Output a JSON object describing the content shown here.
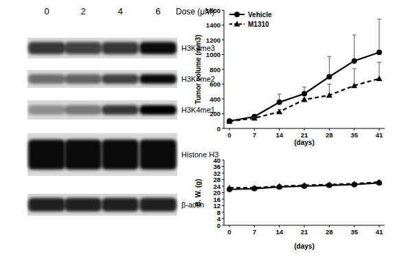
{
  "western_blot": {
    "dose_label": "Dose (μM)",
    "doses": [
      "0",
      "2",
      "4",
      "6"
    ],
    "rows": [
      {
        "label": "H3K4me3",
        "intensity": [
          0.75,
          0.7,
          0.75,
          0.95
        ]
      },
      {
        "label": "H3K4me2",
        "intensity": [
          0.5,
          0.55,
          0.7,
          0.95
        ]
      },
      {
        "label": "H3K4me1",
        "intensity": [
          0.35,
          0.45,
          0.75,
          1
        ]
      },
      {
        "label": "Histone H3",
        "intensity": [
          0.95,
          0.95,
          0.95,
          0.95
        ]
      },
      {
        "label": "β-actin",
        "intensity": [
          0.85,
          0.85,
          0.85,
          0.85
        ]
      }
    ]
  },
  "chart_data": [
    {
      "type": "line",
      "x_label": "(days)",
      "y_label": "Tumor volume (mm3)",
      "categories": [
        "0",
        "7",
        "14",
        "21",
        "28",
        "35",
        "41"
      ],
      "ylim": [
        0,
        1600
      ],
      "yticks": [
        0,
        200,
        400,
        600,
        800,
        1000,
        1200,
        1400,
        1600
      ],
      "legend": "top-left",
      "series": [
        {
          "name": "Vehicle",
          "color": "#000000",
          "marker": "circle",
          "line_style": "solid",
          "values": [
            100,
            160,
            355,
            470,
            700,
            915,
            1030
          ],
          "error": [
            5,
            20,
            110,
            90,
            275,
            350,
            450
          ]
        },
        {
          "name": "M1310",
          "color": "#000000",
          "marker": "triangle",
          "line_style": "dashed",
          "values": [
            95,
            140,
            225,
            390,
            450,
            580,
            675
          ],
          "error": [
            5,
            15,
            30,
            20,
            150,
            230,
            220
          ]
        }
      ]
    },
    {
      "type": "line",
      "x_label": "(days)",
      "y_label": "B. W. (g)",
      "categories": [
        "0",
        "7",
        "14",
        "21",
        "28",
        "35",
        "41"
      ],
      "ylim": [
        0,
        40
      ],
      "yticks": [
        0,
        4,
        8,
        12,
        16,
        20,
        24,
        28,
        32,
        36,
        40
      ],
      "series": [
        {
          "name": "Vehicle",
          "color": "#000000",
          "marker": "circle",
          "line_style": "solid",
          "values": [
            22,
            22.5,
            23.5,
            24,
            24.5,
            25,
            26
          ]
        },
        {
          "name": "M1310",
          "color": "#000000",
          "marker": "triangle",
          "line_style": "dashed",
          "values": [
            23,
            23,
            24,
            24.5,
            25,
            25.5,
            26.5
          ]
        }
      ]
    }
  ]
}
